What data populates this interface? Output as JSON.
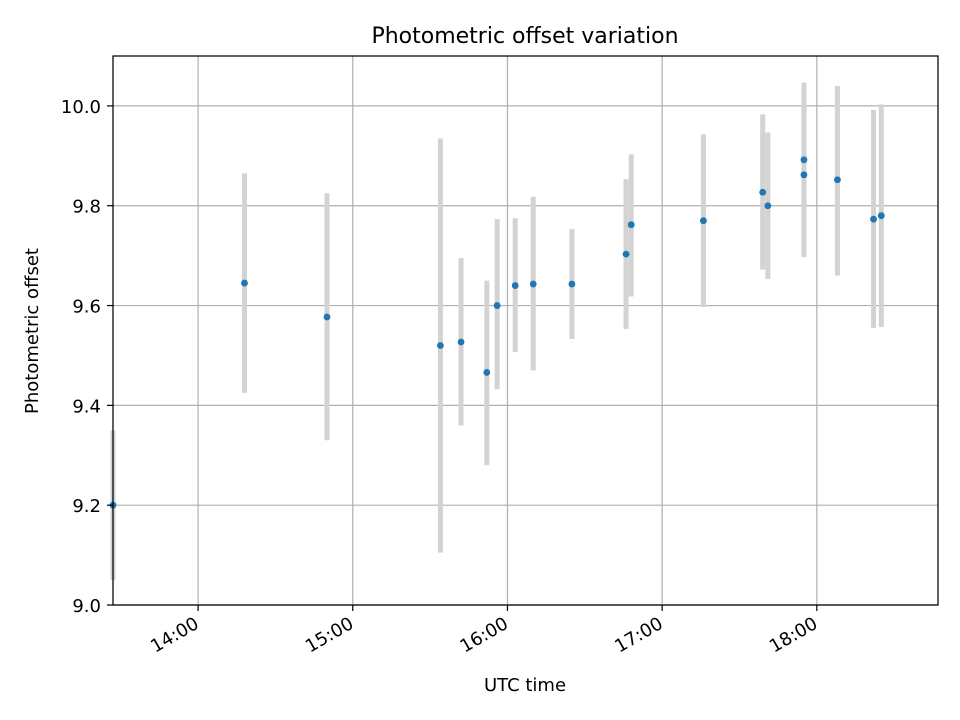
{
  "chart_data": {
    "type": "scatter",
    "title": "Photometric offset variation",
    "xlabel": "UTC time",
    "ylabel": "Photometric offset",
    "xlim": [
      "13:27",
      "18:47"
    ],
    "ylim": [
      9.0,
      10.1
    ],
    "x_ticks": [
      "14:00",
      "15:00",
      "16:00",
      "17:00",
      "18:00"
    ],
    "y_ticks": [
      9.0,
      9.2,
      9.4,
      9.6,
      9.8,
      10.0
    ],
    "grid": true,
    "colors": {
      "point": "#1f77b4",
      "errorbar": "#d3d3d3",
      "grid": "#b0b0b0"
    },
    "points": [
      {
        "x": "13:27",
        "y": 9.2,
        "yerr_low": 9.05,
        "yerr_high": 9.35
      },
      {
        "x": "14:18",
        "y": 9.645,
        "yerr_low": 9.425,
        "yerr_high": 9.865
      },
      {
        "x": "14:50",
        "y": 9.577,
        "yerr_low": 9.33,
        "yerr_high": 9.825
      },
      {
        "x": "15:34",
        "y": 9.52,
        "yerr_low": 9.105,
        "yerr_high": 9.935
      },
      {
        "x": "15:42",
        "y": 9.527,
        "yerr_low": 9.36,
        "yerr_high": 9.695
      },
      {
        "x": "15:52",
        "y": 9.466,
        "yerr_low": 9.28,
        "yerr_high": 9.65
      },
      {
        "x": "15:56",
        "y": 9.6,
        "yerr_low": 9.432,
        "yerr_high": 9.773
      },
      {
        "x": "16:03",
        "y": 9.64,
        "yerr_low": 9.507,
        "yerr_high": 9.775
      },
      {
        "x": "16:10",
        "y": 9.643,
        "yerr_low": 9.47,
        "yerr_high": 9.818
      },
      {
        "x": "16:25",
        "y": 9.643,
        "yerr_low": 9.533,
        "yerr_high": 9.753
      },
      {
        "x": "16:46",
        "y": 9.703,
        "yerr_low": 9.553,
        "yerr_high": 9.853
      },
      {
        "x": "16:48",
        "y": 9.762,
        "yerr_low": 9.618,
        "yerr_high": 9.903
      },
      {
        "x": "17:16",
        "y": 9.77,
        "yerr_low": 9.597,
        "yerr_high": 9.943
      },
      {
        "x": "17:39",
        "y": 9.827,
        "yerr_low": 9.672,
        "yerr_high": 9.983
      },
      {
        "x": "17:41",
        "y": 9.8,
        "yerr_low": 9.653,
        "yerr_high": 9.947
      },
      {
        "x": "17:55",
        "y": 9.892,
        "yerr_low": 9.737,
        "yerr_high": 10.047
      },
      {
        "x": "17:55",
        "y": 9.862,
        "yerr_low": 9.697,
        "yerr_high": 10.027
      },
      {
        "x": "18:08",
        "y": 9.852,
        "yerr_low": 9.66,
        "yerr_high": 10.04
      },
      {
        "x": "18:22",
        "y": 9.773,
        "yerr_low": 9.555,
        "yerr_high": 9.992
      },
      {
        "x": "18:25",
        "y": 9.78,
        "yerr_low": 9.557,
        "yerr_high": 10.003
      }
    ]
  }
}
